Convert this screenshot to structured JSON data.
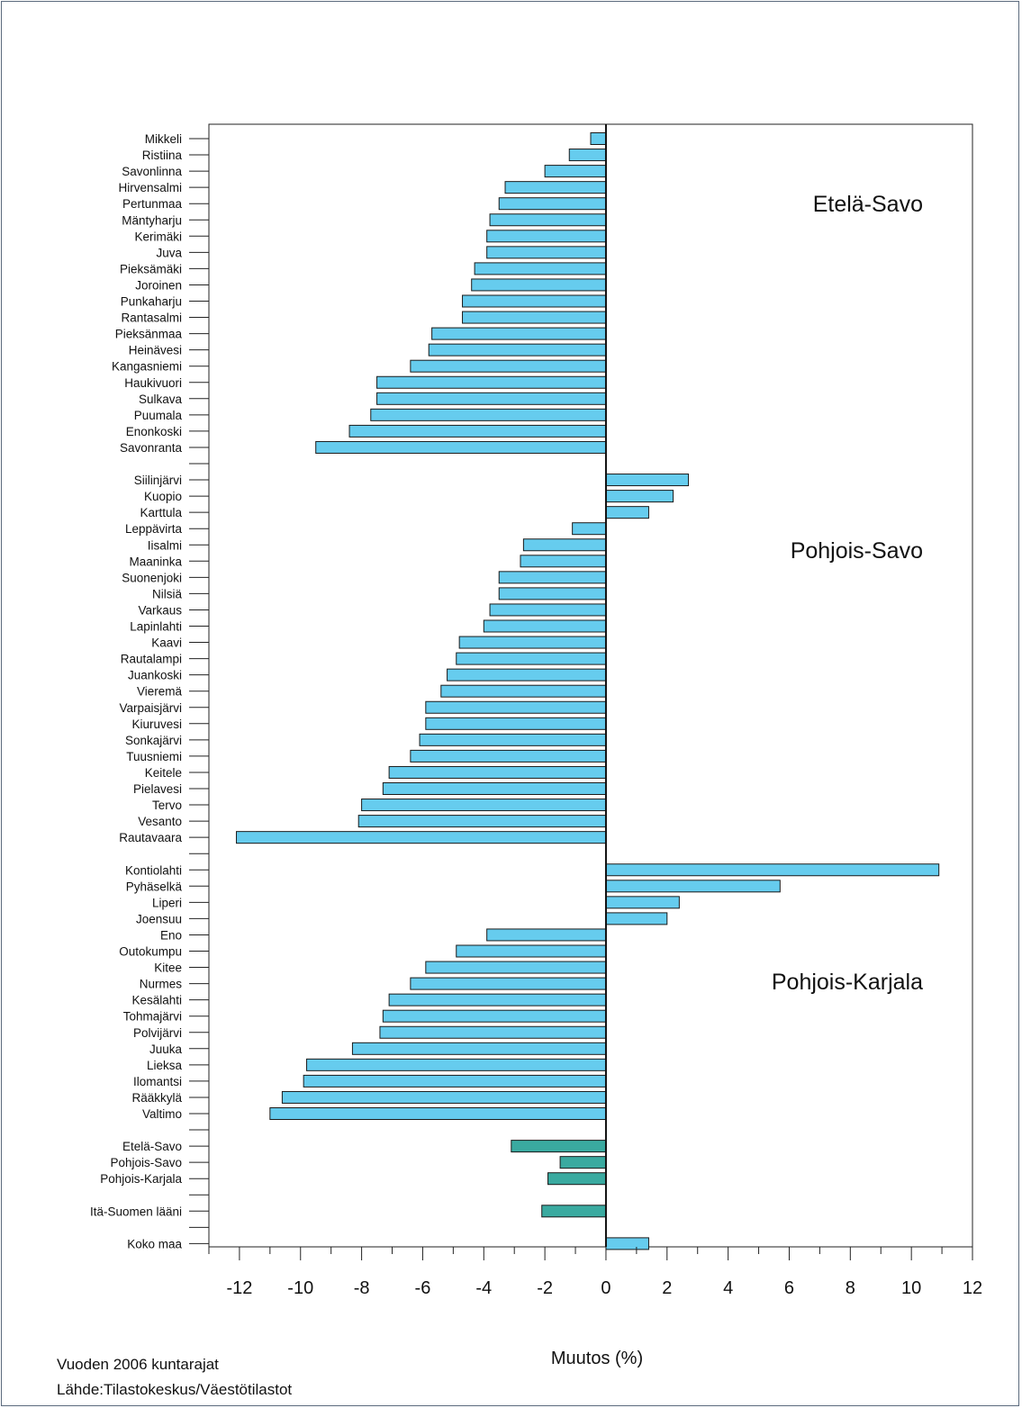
{
  "chart_data": {
    "type": "bar",
    "orientation": "horizontal",
    "xlabel": "Muutos (%)",
    "xlim": [
      -13,
      12
    ],
    "xticks": [
      -12,
      -10,
      -8,
      -6,
      -4,
      -2,
      0,
      2,
      4,
      6,
      8,
      10,
      12
    ],
    "region_labels": [
      "Etelä-Savo",
      "Pohjois-Savo",
      "Pohjois-Karjala"
    ],
    "footnote": "Vuoden 2006 kuntarajat",
    "source": "Lähde:Tilastokeskus/Väestötilastot",
    "colors": {
      "municipality": "#66ccee",
      "aggregate": "#3aaaa0",
      "outline": "#1a1a1a"
    },
    "categories": [
      "Mikkeli",
      "Ristiina",
      "Savonlinna",
      "Hirvensalmi",
      "Pertunmaa",
      "Mäntyharju",
      "Kerimäki",
      "Juva",
      "Pieksämäki",
      "Joroinen",
      "Punkaharju",
      "Rantasalmi",
      "Pieksänmaa",
      "Heinävesi",
      "Kangasniemi",
      "Haukivuori",
      "Sulkava",
      "Puumala",
      "Enonkoski",
      "Savonranta",
      "",
      "Siilinjärvi",
      "Kuopio",
      "Karttula",
      "Leppävirta",
      "Iisalmi",
      "Maaninka",
      "Suonenjoki",
      "Nilsiä",
      "Varkaus",
      "Lapinlahti",
      "Kaavi",
      "Rautalampi",
      "Juankoski",
      "Vieremä",
      "Varpaisjärvi",
      "Kiuruvesi",
      "Sonkajärvi",
      "Tuusniemi",
      "Keitele",
      "Pielavesi",
      "Tervo",
      "Vesanto",
      "Rautavaara",
      "",
      "Kontiolahti",
      "Pyhäselkä",
      "Liperi",
      "Joensuu",
      "Eno",
      "Outokumpu",
      "Kitee",
      "Nurmes",
      "Kesälahti",
      "Tohmajärvi",
      "Polvijärvi",
      "Juuka",
      "Lieksa",
      "Ilomantsi",
      "Rääkkylä",
      "Valtimo",
      "",
      "Etelä-Savo",
      "Pohjois-Savo",
      "Pohjois-Karjala",
      "",
      "Itä-Suomen lääni",
      "",
      "Koko maa"
    ],
    "values": [
      -0.5,
      -1.2,
      -2.0,
      -3.3,
      -3.5,
      -3.8,
      -3.9,
      -3.9,
      -4.3,
      -4.4,
      -4.7,
      -4.7,
      -5.7,
      -5.8,
      -6.4,
      -7.5,
      -7.5,
      -7.7,
      -8.4,
      -9.5,
      null,
      2.7,
      2.2,
      1.4,
      -1.1,
      -2.7,
      -2.8,
      -3.5,
      -3.5,
      -3.8,
      -4.0,
      -4.8,
      -4.9,
      -5.2,
      -5.4,
      -5.9,
      -5.9,
      -6.1,
      -6.4,
      -7.1,
      -7.3,
      -8.0,
      -8.1,
      -12.1,
      null,
      10.9,
      5.7,
      2.4,
      2.0,
      -3.9,
      -4.9,
      -5.9,
      -6.4,
      -7.1,
      -7.3,
      -7.4,
      -8.3,
      -9.8,
      -9.9,
      -10.6,
      -11.0,
      null,
      -3.1,
      -1.5,
      -1.9,
      null,
      -2.1,
      null,
      1.4
    ],
    "aggregate": [
      false,
      false,
      false,
      false,
      false,
      false,
      false,
      false,
      false,
      false,
      false,
      false,
      false,
      false,
      false,
      false,
      false,
      false,
      false,
      false,
      false,
      false,
      false,
      false,
      false,
      false,
      false,
      false,
      false,
      false,
      false,
      false,
      false,
      false,
      false,
      false,
      false,
      false,
      false,
      false,
      false,
      false,
      false,
      false,
      false,
      false,
      false,
      false,
      false,
      false,
      false,
      false,
      false,
      false,
      false,
      false,
      false,
      false,
      false,
      false,
      false,
      false,
      true,
      true,
      true,
      false,
      true,
      false,
      false
    ]
  }
}
